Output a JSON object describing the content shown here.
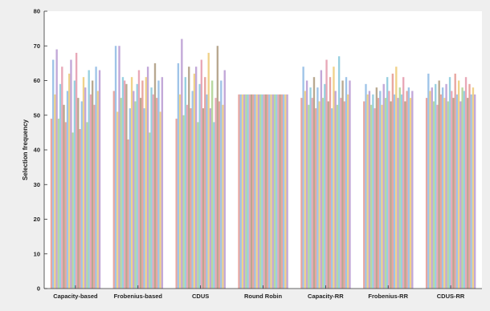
{
  "chart_data": {
    "type": "bar",
    "title": "",
    "xlabel": "",
    "ylabel": "Selection frequency",
    "ylim": [
      0,
      80
    ],
    "yticks": [
      0,
      10,
      20,
      30,
      40,
      50,
      60,
      70,
      80
    ],
    "grid": false,
    "legend": "none",
    "bars_per_group": 28,
    "series_colors": [
      "#e8a6a0",
      "#9fc4e8",
      "#f0d28a",
      "#c2a8d8",
      "#b8d8a0",
      "#98d0e0",
      "#e8a8b8",
      "#b8a890"
    ],
    "categories": [
      "Capacity-based",
      "Frobenius-based",
      "CDUS",
      "Round Robin",
      "Capacity-RR",
      "Frobenius-RR",
      "CDUS-RR"
    ],
    "values": [
      [
        49,
        66,
        56,
        69,
        49,
        59,
        64,
        53,
        48,
        57,
        62,
        66,
        45,
        60,
        68,
        55,
        46,
        54,
        61,
        58,
        48,
        63,
        56,
        60,
        53,
        64,
        57,
        63
      ],
      [
        57,
        70,
        51,
        70,
        55,
        61,
        60,
        59,
        43,
        52,
        61,
        57,
        54,
        59,
        63,
        55,
        60,
        52,
        61,
        64,
        45,
        58,
        56,
        65,
        55,
        60,
        51,
        61
      ],
      [
        49,
        65,
        56,
        72,
        50,
        61,
        53,
        64,
        52,
        57,
        62,
        64,
        48,
        59,
        66,
        52,
        61,
        56,
        68,
        52,
        60,
        48,
        55,
        70,
        54,
        60,
        53,
        63
      ],
      [
        56,
        56,
        56,
        56,
        56,
        56,
        56,
        56,
        56,
        56,
        56,
        56,
        56,
        56,
        56,
        56,
        56,
        56,
        56,
        56,
        56,
        56,
        56,
        56,
        56,
        56,
        56,
        56
      ],
      [
        55,
        64,
        57,
        60,
        53,
        58,
        55,
        61,
        52,
        58,
        54,
        63,
        55,
        59,
        66,
        54,
        61,
        52,
        64,
        57,
        53,
        67,
        55,
        60,
        54,
        61,
        56,
        60
      ],
      [
        54,
        59,
        56,
        57,
        53,
        56,
        52,
        58,
        55,
        57,
        53,
        59,
        55,
        61,
        57,
        54,
        62,
        56,
        64,
        55,
        58,
        56,
        61,
        54,
        57,
        58,
        55,
        57
      ],
      [
        55,
        62,
        57,
        58,
        54,
        59,
        53,
        60,
        56,
        58,
        55,
        59,
        54,
        61,
        57,
        55,
        62,
        56,
        60,
        54,
        58,
        57,
        61,
        55,
        59,
        56,
        58,
        56
      ]
    ]
  }
}
